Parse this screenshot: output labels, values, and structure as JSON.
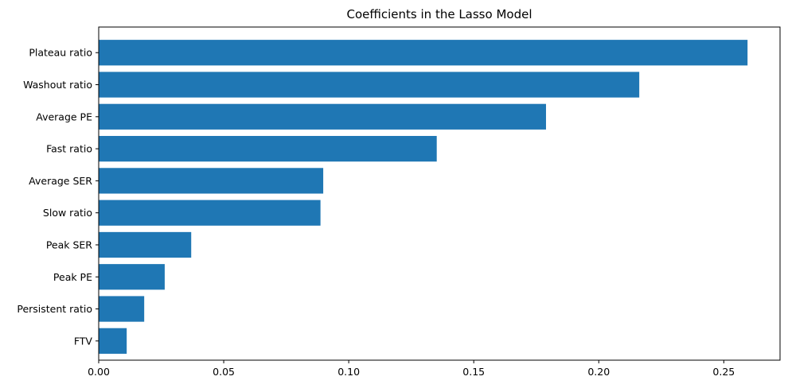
{
  "chart_data": {
    "type": "bar",
    "orientation": "horizontal",
    "title": "Coefficients in the Lasso Model",
    "xlabel": "",
    "ylabel": "",
    "categories": [
      "Plateau ratio",
      "Washout ratio",
      "Average PE",
      "Fast ratio",
      "Average SER",
      "Slow ratio",
      "Peak SER",
      "Peak PE",
      "Persistent ratio",
      "FTV"
    ],
    "values": [
      0.2595,
      0.2162,
      0.1789,
      0.1352,
      0.0898,
      0.0887,
      0.037,
      0.0264,
      0.0182,
      0.0112
    ],
    "xlim": [
      0.0,
      0.2725
    ],
    "xticks": [
      0.0,
      0.05,
      0.1,
      0.15,
      0.2,
      0.25
    ],
    "xtick_labels": [
      "0.00",
      "0.05",
      "0.10",
      "0.15",
      "0.20",
      "0.25"
    ],
    "bar_color": "#1f77b4",
    "grid": false,
    "legend": "none"
  }
}
